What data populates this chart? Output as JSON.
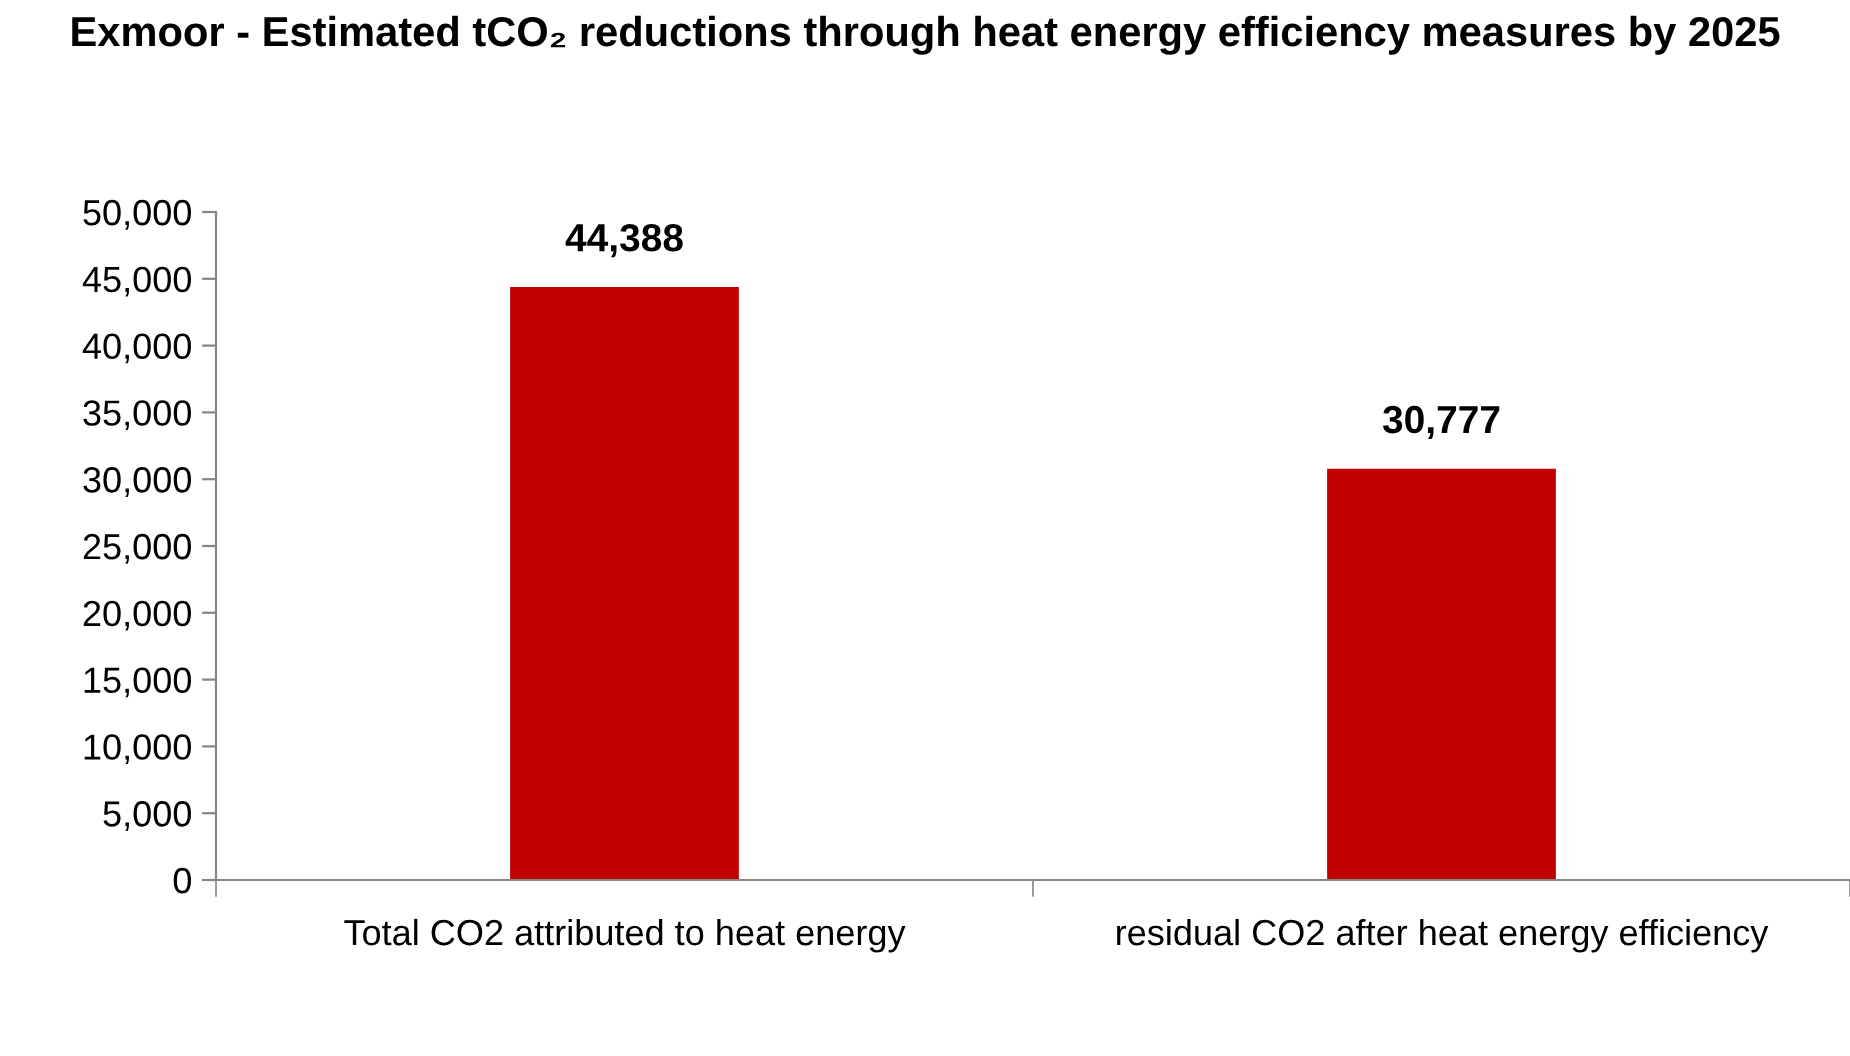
{
  "chart_data": {
    "type": "bar",
    "title": "Exmoor - Estimated tCO₂ reductions through heat energy efficiency measures by 2025",
    "categories": [
      "Total CO2 attributed to heat energy",
      "residual CO2 after heat energy efficiency"
    ],
    "values": [
      44388,
      30777
    ],
    "color": "#c00000",
    "value_labels": [
      "44,388",
      "30,777"
    ],
    "ylim": [
      0,
      50000
    ],
    "yticks": [
      {
        "value": 0,
        "label": "0"
      },
      {
        "value": 5000,
        "label": "5,000"
      },
      {
        "value": 10000,
        "label": "10,000"
      },
      {
        "value": 15000,
        "label": "15,000"
      },
      {
        "value": 20000,
        "label": "20,000"
      },
      {
        "value": 25000,
        "label": "25,000"
      },
      {
        "value": 30000,
        "label": "30,000"
      },
      {
        "value": 35000,
        "label": "35,000"
      },
      {
        "value": 40000,
        "label": "40,000"
      },
      {
        "value": 45000,
        "label": "45,000"
      },
      {
        "value": 50000,
        "label": "50,000"
      }
    ],
    "grid": false
  }
}
